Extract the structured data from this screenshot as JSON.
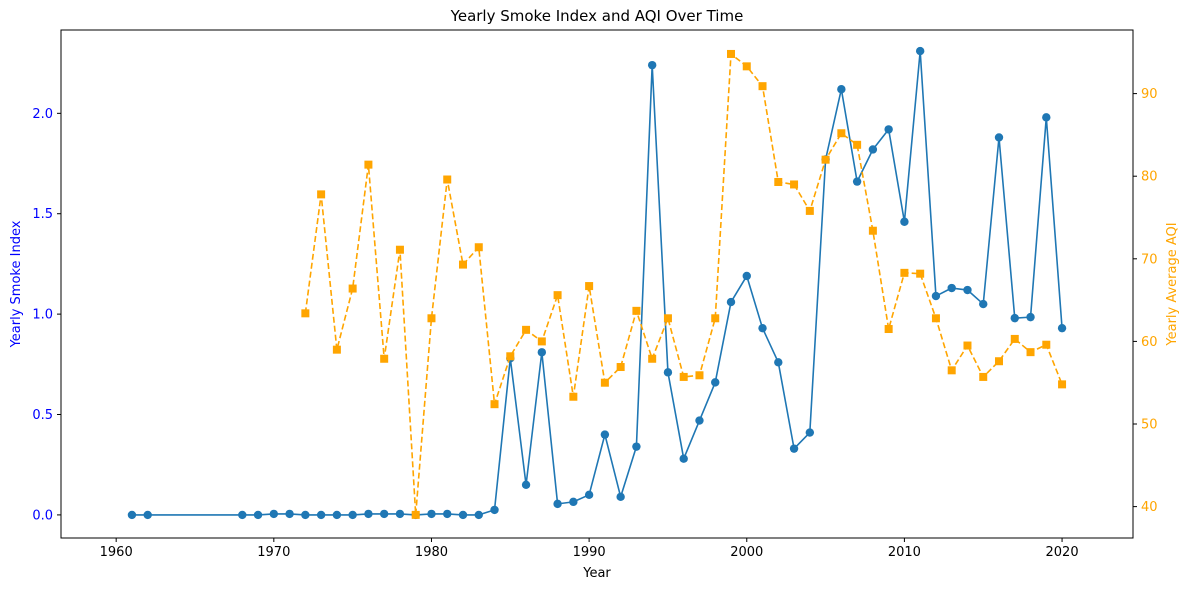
{
  "chart_data": {
    "type": "line",
    "title": "Yearly Smoke Index and AQI Over Time",
    "xlabel": "Year",
    "ylabel_left": "Yearly Smoke Index",
    "ylabel_right": "Yearly Average AQI",
    "xlim": [
      1956.5,
      2024.5
    ],
    "ylim_left": [
      -0.115,
      2.415
    ],
    "ylim_right": [
      36.2,
      97.7
    ],
    "x_ticks": [
      1960,
      1970,
      1980,
      1990,
      2000,
      2010,
      2020
    ],
    "y_left_ticks": [
      "0.0",
      "0.5",
      "1.0",
      "1.5",
      "2.0"
    ],
    "y_right_ticks": [
      "40",
      "50",
      "60",
      "70",
      "80",
      "90"
    ],
    "grid": false,
    "colors": {
      "smoke": "#1f77b4",
      "aqi": "#ffa500",
      "left_axis": "#0000ff",
      "right_axis": "#ffa500"
    },
    "series": [
      {
        "axis": "left",
        "style": "solid-circle",
        "x": [
          1961,
          1962,
          1968,
          1969,
          1970,
          1971,
          1972,
          1973,
          1974,
          1975,
          1976,
          1977,
          1978,
          1979,
          1980,
          1981,
          1982,
          1983,
          1984,
          1985,
          1986,
          1987,
          1988,
          1989,
          1990,
          1991,
          1992,
          1993,
          1994,
          1995,
          1996,
          1997,
          1998,
          1999,
          2000,
          2001,
          2002,
          2003,
          2004,
          2005,
          2006,
          2007,
          2008,
          2009,
          2010,
          2011,
          2012,
          2013,
          2014,
          2015,
          2016,
          2017,
          2018,
          2019,
          2020
        ],
        "values": [
          0.0,
          0.0,
          0.0,
          0.0,
          0.005,
          0.005,
          0.0,
          0.0,
          0.0,
          0.0,
          0.005,
          0.005,
          0.005,
          0.0,
          0.005,
          0.005,
          0.0,
          0.0,
          0.025,
          0.78,
          0.15,
          0.81,
          0.055,
          0.065,
          0.1,
          0.4,
          0.09,
          0.34,
          2.24,
          0.71,
          0.28,
          0.47,
          0.66,
          1.06,
          1.19,
          0.93,
          0.76,
          0.33,
          0.41,
          1.77,
          2.12,
          1.66,
          1.82,
          1.92,
          1.46,
          2.31,
          1.09,
          1.13,
          1.12,
          1.05,
          1.88,
          0.98,
          0.985,
          1.98,
          0.93
        ]
      },
      {
        "axis": "right",
        "style": "dashed-square",
        "x": [
          1972,
          1973,
          1974,
          1975,
          1976,
          1977,
          1978,
          1979,
          1980,
          1981,
          1982,
          1983,
          1984,
          1985,
          1986,
          1987,
          1988,
          1989,
          1990,
          1991,
          1992,
          1993,
          1994,
          1995,
          1996,
          1997,
          1998,
          1999,
          2000,
          2001,
          2002,
          2003,
          2004,
          2005,
          2006,
          2007,
          2008,
          2009,
          2010,
          2011,
          2012,
          2013,
          2014,
          2015,
          2016,
          2017,
          2018,
          2019,
          2020
        ],
        "values": [
          63.4,
          77.8,
          59.0,
          66.4,
          81.4,
          57.9,
          71.1,
          39.0,
          62.8,
          79.6,
          69.3,
          71.4,
          52.4,
          58.2,
          61.4,
          60.0,
          65.6,
          53.3,
          66.7,
          55.0,
          56.9,
          63.7,
          57.9,
          62.8,
          55.7,
          55.9,
          62.8,
          94.8,
          93.3,
          90.9,
          79.3,
          79.0,
          75.8,
          82.0,
          85.2,
          83.8,
          73.4,
          61.5,
          68.3,
          68.2,
          62.8,
          56.5,
          59.5,
          55.7,
          57.6,
          60.3,
          58.7,
          59.6,
          54.8
        ]
      }
    ]
  }
}
